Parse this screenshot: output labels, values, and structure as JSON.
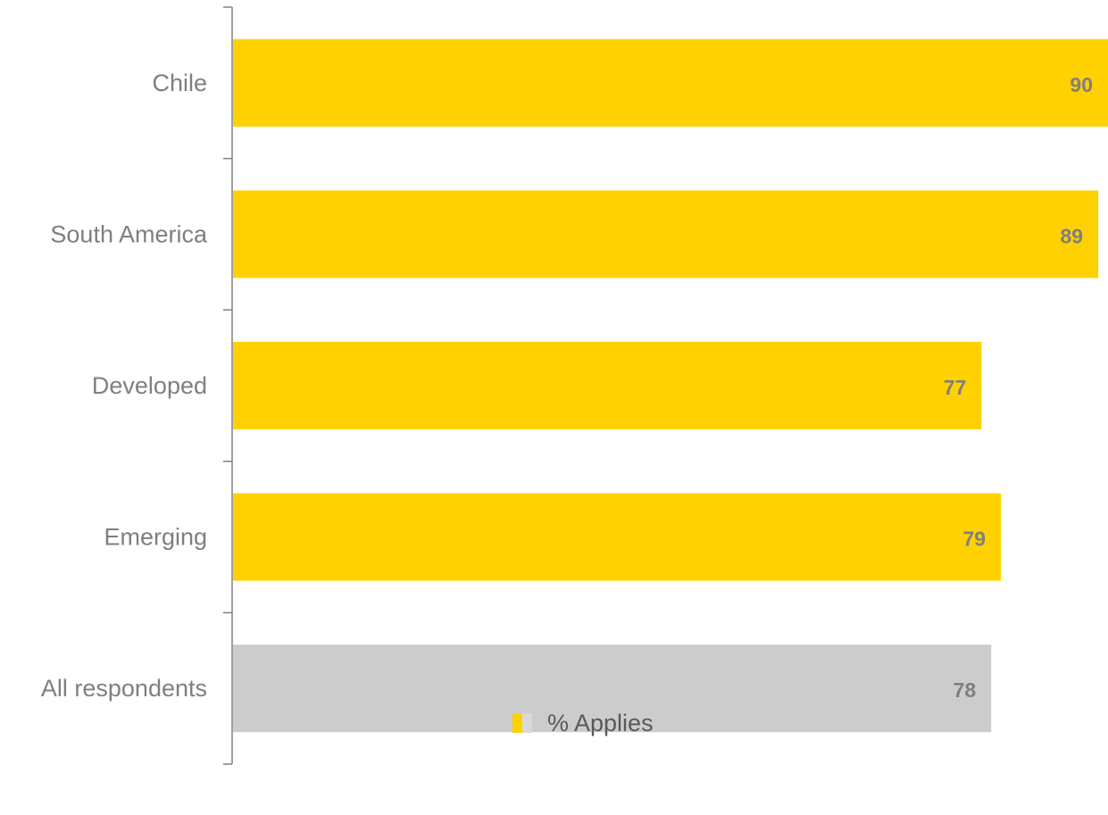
{
  "chart_data": {
    "type": "bar",
    "orientation": "horizontal",
    "categories": [
      "Chile",
      "South America",
      "Developed",
      "Emerging",
      "All respondents"
    ],
    "series": [
      {
        "name": "% Applies",
        "values": [
          90,
          89,
          77,
          79,
          78
        ],
        "colors": [
          "#ffd100",
          "#ffd100",
          "#ffd100",
          "#ffd100",
          "#cccccc"
        ]
      }
    ],
    "data_labels": [
      "90",
      "89",
      "77",
      "79",
      "78"
    ],
    "xlim": [
      0,
      90
    ],
    "grid": false,
    "legend": {
      "position": "bottom",
      "label": "% Applies",
      "colors": [
        "#ffd100",
        "#d9d9d9"
      ]
    },
    "axis_color": "#808080",
    "label_color": "#7f7f7f"
  }
}
